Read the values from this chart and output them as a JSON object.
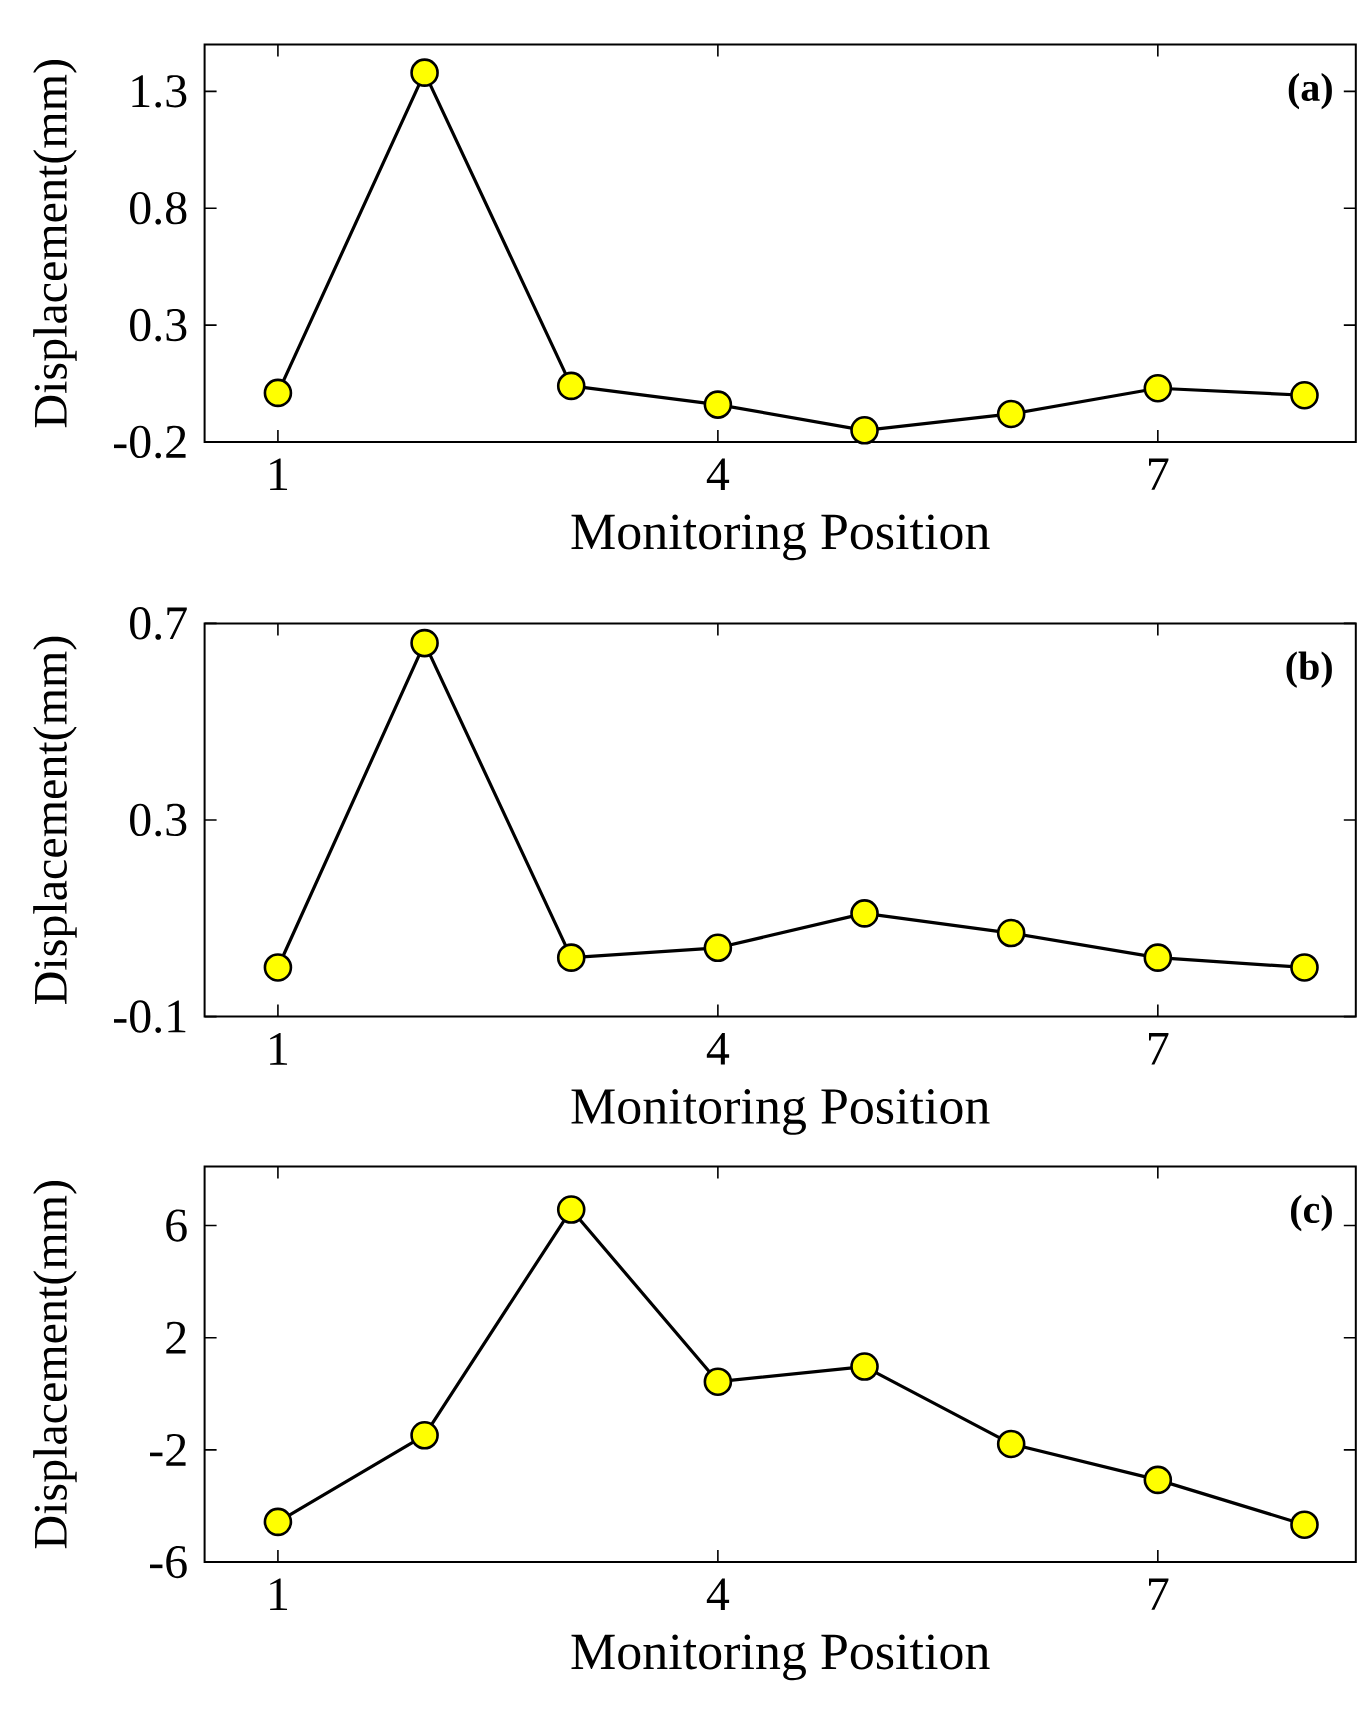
{
  "chart_data": [
    {
      "type": "line",
      "xlabel": "Monitoring Position",
      "ylabel": "Displacement(mm)",
      "annotations": [
        "(a)"
      ],
      "x": [
        1,
        2,
        3,
        4,
        5,
        6,
        7,
        8
      ],
      "xlim": [
        0.5,
        8.35
      ],
      "xticks": [
        1,
        4,
        7
      ],
      "ylim": [
        -0.2,
        1.5
      ],
      "yticks": [
        -0.2,
        0.3,
        0.8,
        1.3
      ],
      "marker": "circle",
      "line_style": "solid",
      "series": [
        {
          "color": "#ffff00",
          "values": [
            0.01,
            1.38,
            0.04,
            -0.04,
            -0.15,
            -0.08,
            0.03,
            0.0
          ]
        }
      ]
    },
    {
      "type": "line",
      "xlabel": "Monitoring Position",
      "ylabel": "Displacement(mm)",
      "annotations": [
        "(b)"
      ],
      "x": [
        1,
        2,
        3,
        4,
        5,
        6,
        7,
        8
      ],
      "xlim": [
        0.5,
        8.35
      ],
      "xticks": [
        1,
        4,
        7
      ],
      "ylim": [
        -0.1,
        0.7
      ],
      "yticks": [
        -0.1,
        0.3,
        0.7
      ],
      "marker": "circle",
      "line_style": "solid",
      "series": [
        {
          "color": "#ffff00",
          "values": [
            0.0,
            0.66,
            0.02,
            0.04,
            0.11,
            0.07,
            0.02,
            0.0
          ]
        }
      ]
    },
    {
      "type": "line",
      "xlabel": "Monitoring Position",
      "ylabel": "Displacement(mm)",
      "annotations": [
        "(c)"
      ],
      "x": [
        1,
        2,
        3,
        4,
        5,
        6,
        7,
        8
      ],
      "xlim": [
        0.5,
        8.35
      ],
      "xticks": [
        1,
        4,
        7
      ],
      "ylim": [
        -6,
        8.1
      ],
      "yticks": [
        -6,
        -2,
        2,
        6
      ],
      "marker": "circle",
      "line_style": "solid",
      "series": [
        {
          "color": "#ffff00",
          "values": [
            -4.57,
            -1.48,
            6.57,
            0.43,
            0.97,
            -1.79,
            -3.07,
            -4.67
          ]
        }
      ]
    }
  ]
}
